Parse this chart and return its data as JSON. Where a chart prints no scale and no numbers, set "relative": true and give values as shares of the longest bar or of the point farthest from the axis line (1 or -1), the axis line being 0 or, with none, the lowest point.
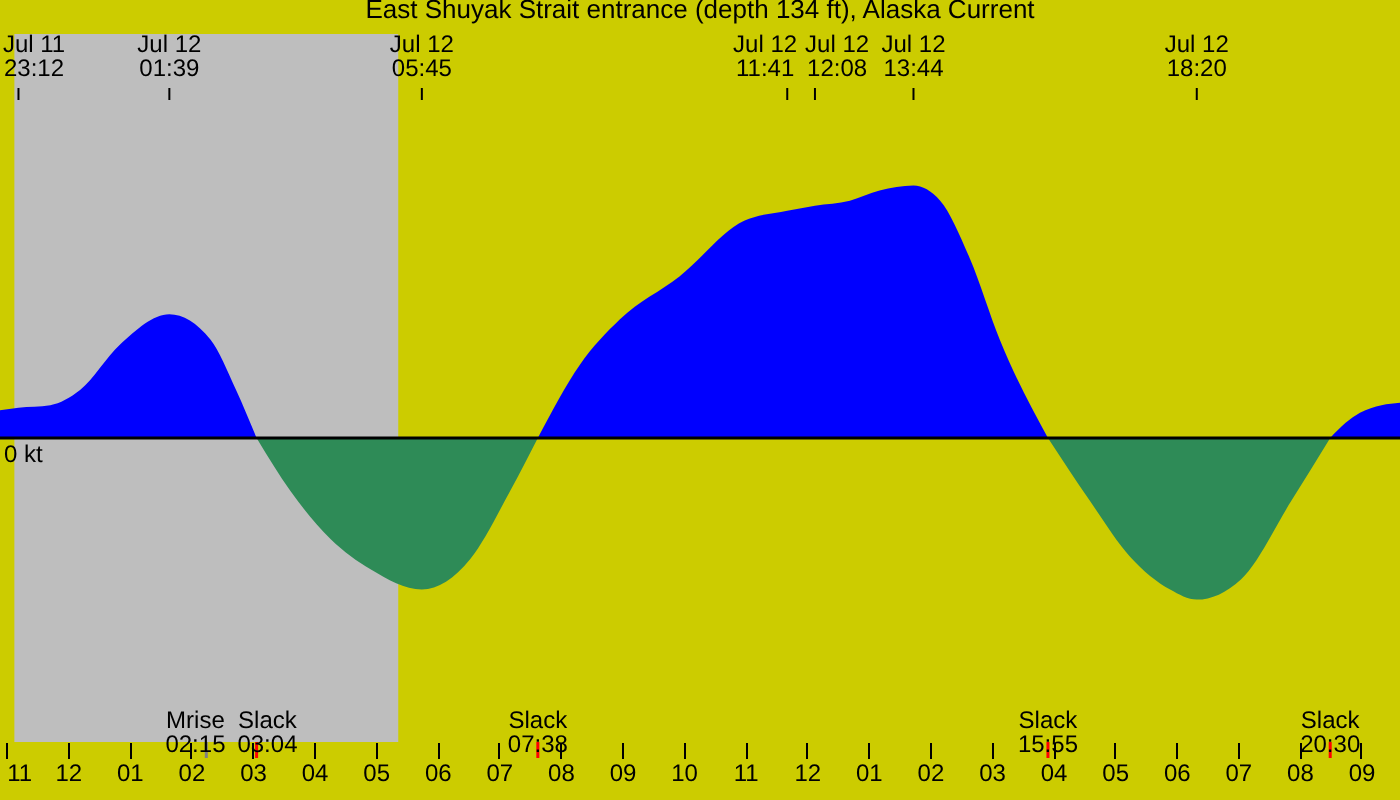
{
  "chart_data": {
    "type": "area",
    "title": "East Shuyak Strait entrance (depth 134 ft), Alaska Current",
    "relative": true,
    "series": [
      {
        "color": "#0000ff",
        "x": [
          "--07-11T22:54",
          "--07-11T23:12",
          "--07-11T23:43",
          "--07-12T00:12",
          "--07-12T00:51",
          "--07-12T01:39",
          "--07-12T02:19",
          "--07-12T02:44",
          "--07-12T03:04"
        ],
        "values": [
          0.11,
          0.12,
          0.13,
          0.19,
          0.37,
          0.49,
          0.39,
          0.19,
          0
        ]
      },
      {
        "color": "#2e8b57",
        "x": [
          "--07-12T03:04",
          "--07-12T03:37",
          "--07-12T04:16",
          "--07-12T04:55",
          "--07-12T05:45",
          "--07-12T06:32",
          "--07-12T07:11",
          "--07-12T07:38"
        ],
        "values": [
          0,
          -0.21,
          -0.4,
          -0.52,
          -0.6,
          -0.48,
          -0.21,
          0
        ]
      },
      {
        "color": "#0000ff",
        "x": [
          "--07-12T07:38",
          "--07-12T08:19",
          "--07-12T08:58",
          "--07-12T09:56",
          "--07-12T10:59",
          "--07-12T11:41",
          "--07-12T12:08",
          "--07-12T12:42",
          "--07-12T13:11",
          "--07-12T13:44",
          "--07-12T14:10",
          "--07-12T14:39",
          "--07-12T15:08",
          "--07-12T15:55"
        ],
        "values": [
          0,
          0.29,
          0.47,
          0.64,
          0.86,
          0.9,
          0.92,
          0.94,
          0.98,
          1.0,
          0.94,
          0.71,
          0.39,
          0
        ]
      },
      {
        "color": "#2e8b57",
        "x": [
          "--07-12T15:55",
          "--07-12T16:36",
          "--07-12T17:15",
          "--07-12T17:54",
          "--07-12T18:20",
          "--07-12T19:03",
          "--07-12T19:52",
          "--07-12T20:30"
        ],
        "values": [
          0,
          -0.25,
          -0.47,
          -0.6,
          -0.64,
          -0.56,
          -0.25,
          0
        ]
      },
      {
        "color": "#0000ff",
        "x": [
          "--07-12T20:30",
          "--07-12T20:45",
          "--07-12T20:59",
          "--07-12T21:20",
          "--07-12T21:38"
        ],
        "values": [
          0,
          0.06,
          0.1,
          0.13,
          0.14
        ]
      }
    ],
    "xlim": [
      "--07-11T22:54",
      "--07-12T21:38"
    ],
    "xticks": [
      {
        "value": "--07-11T23:00",
        "label": "11"
      },
      {
        "value": "--07-12T00:00",
        "label": "12"
      },
      {
        "value": "--07-12T01:00",
        "label": "01"
      },
      {
        "value": "--07-12T02:00",
        "label": "02"
      },
      {
        "value": "--07-12T03:00",
        "label": "03"
      },
      {
        "value": "--07-12T04:00",
        "label": "04"
      },
      {
        "value": "--07-12T05:00",
        "label": "05"
      },
      {
        "value": "--07-12T06:00",
        "label": "06"
      },
      {
        "value": "--07-12T07:00",
        "label": "07"
      },
      {
        "value": "--07-12T08:00",
        "label": "08"
      },
      {
        "value": "--07-12T09:00",
        "label": "09"
      },
      {
        "value": "--07-12T10:00",
        "label": "10"
      },
      {
        "value": "--07-12T11:00",
        "label": "11"
      },
      {
        "value": "--07-12T12:00",
        "label": "12"
      },
      {
        "value": "--07-12T13:00",
        "label": "01"
      },
      {
        "value": "--07-12T14:00",
        "label": "02"
      },
      {
        "value": "--07-12T15:00",
        "label": "03"
      },
      {
        "value": "--07-12T16:00",
        "label": "04"
      },
      {
        "value": "--07-12T17:00",
        "label": "05"
      },
      {
        "value": "--07-12T18:00",
        "label": "06"
      },
      {
        "value": "--07-12T19:00",
        "label": "07"
      },
      {
        "value": "--07-12T20:00",
        "label": "08"
      },
      {
        "value": "--07-12T21:00",
        "label": "09"
      }
    ],
    "tick_labels": "x",
    "bands": [
      {
        "axis": "x",
        "from": "--07-11T23:08",
        "to": "--07-12T05:22",
        "color": "#bebebe"
      }
    ],
    "ref_lines": [
      {
        "axis": "y",
        "value": 0,
        "color": "#000000"
      },
      {
        "axis": "x",
        "value": "--07-12T02:15",
        "label": "Mrise 02:15",
        "color": "#808080"
      },
      {
        "axis": "x",
        "value": "--07-12T03:04",
        "label": "Slack 03:04",
        "color": "#ff0000"
      },
      {
        "axis": "x",
        "value": "--07-12T07:38",
        "label": "Slack 07:38",
        "color": "#ff0000"
      },
      {
        "axis": "x",
        "value": "--07-12T15:55",
        "label": "Slack 15:55",
        "color": "#ff0000"
      },
      {
        "axis": "x",
        "value": "--07-12T20:30",
        "label": "Slack 20:30",
        "color": "#ff0000"
      },
      {
        "axis": "x",
        "value": "--07-11T23:12",
        "label": "Jul 11 23:12"
      },
      {
        "axis": "x",
        "value": "--07-12T01:39",
        "label": "Jul 12 01:39"
      },
      {
        "axis": "x",
        "value": "--07-12T05:45",
        "label": "Jul 12 05:45"
      },
      {
        "axis": "x",
        "value": "--07-12T11:41",
        "label": "Jul 12 11:41"
      },
      {
        "axis": "x",
        "value": "--07-12T12:08",
        "label": "Jul 12 12:08"
      },
      {
        "axis": "x",
        "value": "--07-12T13:44",
        "label": "Jul 12 13:44"
      },
      {
        "axis": "x",
        "value": "--07-12T18:20",
        "label": "Jul 12 18:20"
      }
    ],
    "annotations": [
      "0 kt"
    ]
  }
}
